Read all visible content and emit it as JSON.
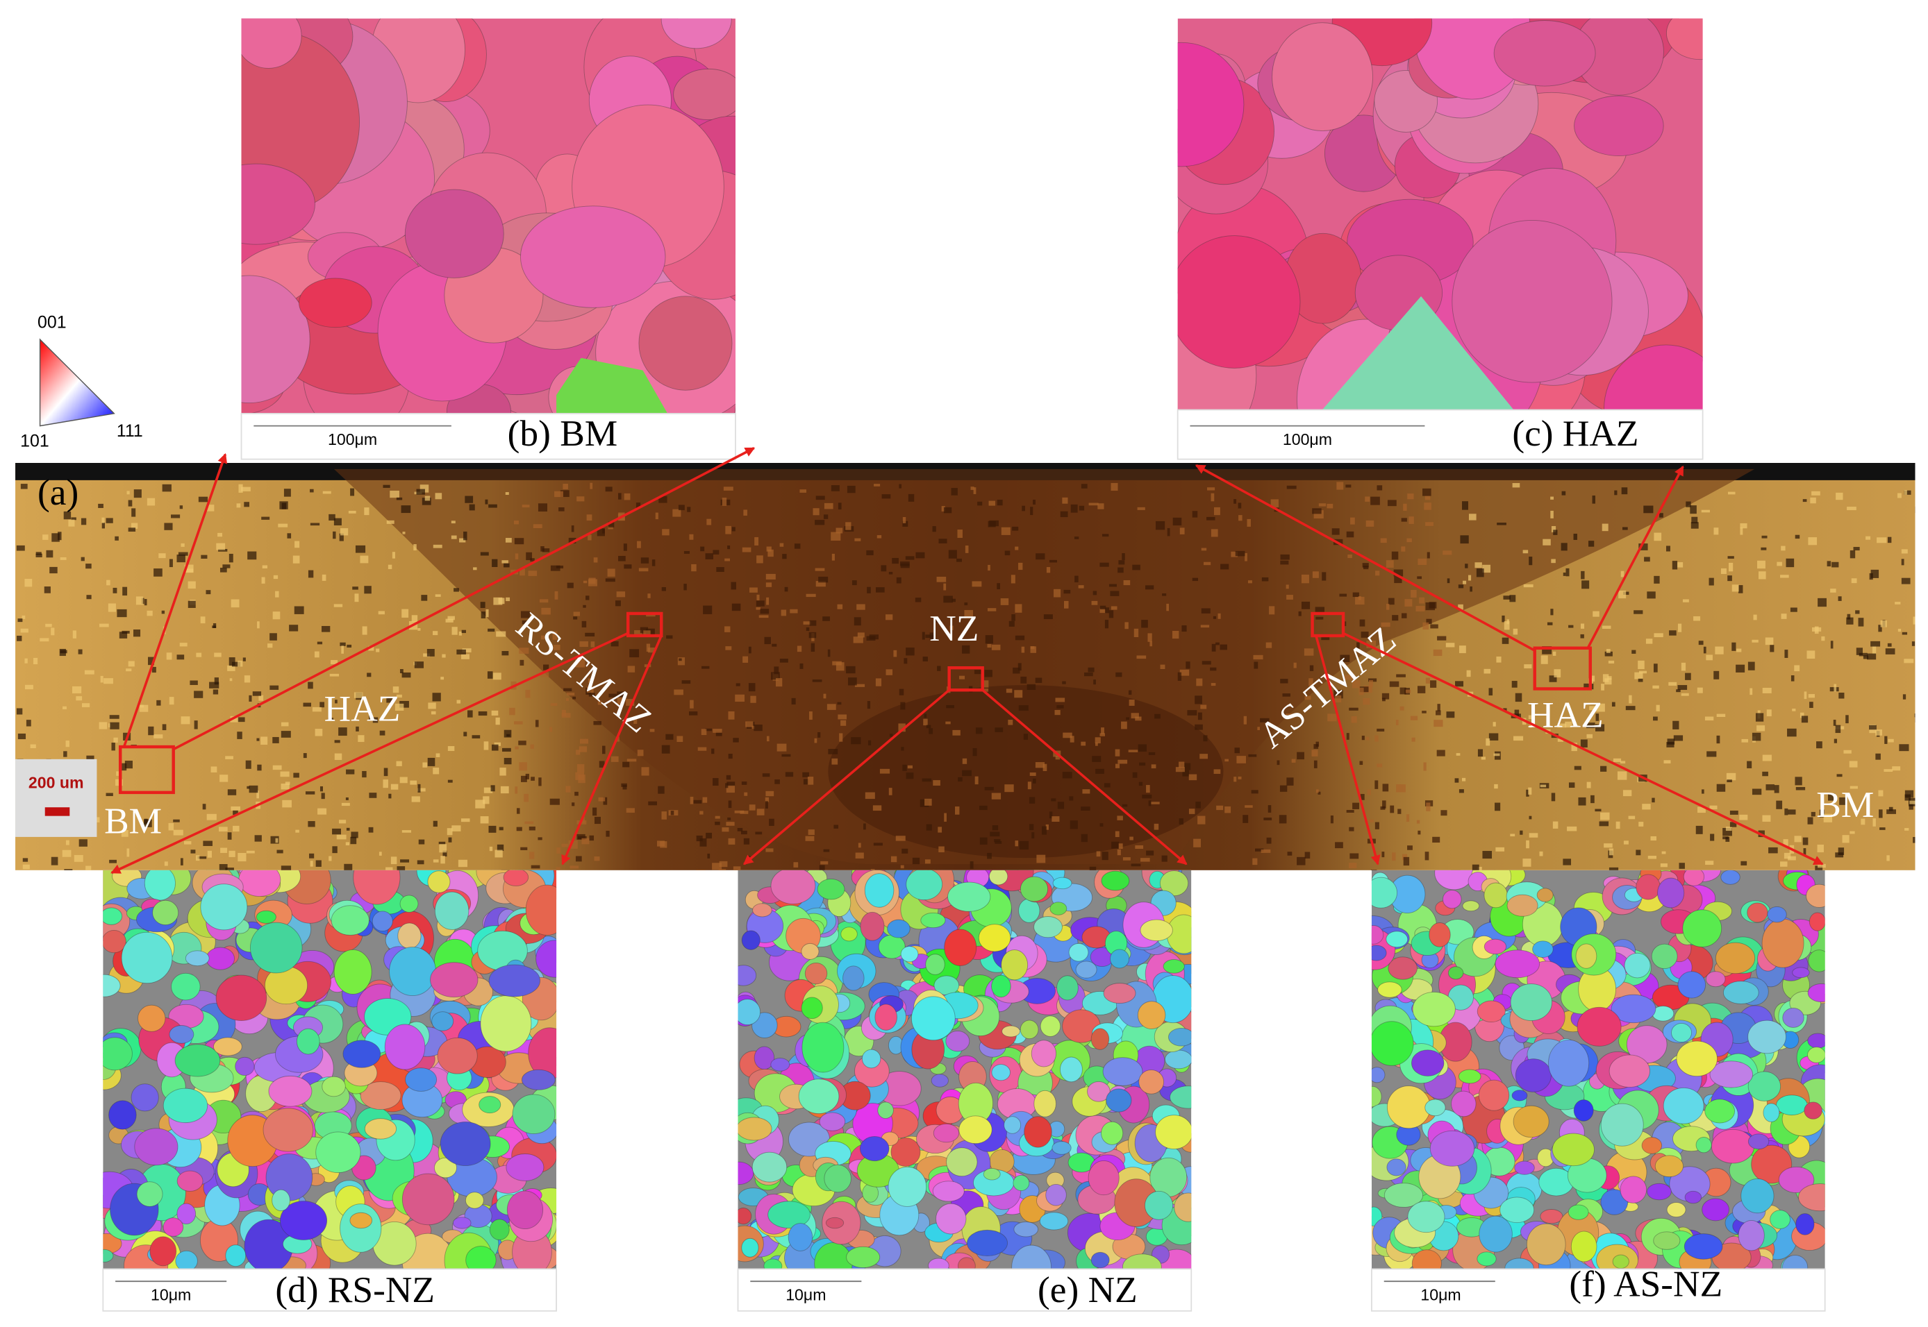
{
  "legend": {
    "top": "001",
    "left": "101",
    "right": "111"
  },
  "panels": {
    "a": {
      "label": "(a)",
      "scale": "200 um",
      "regions": [
        "BM",
        "HAZ",
        "RS-TMAZ",
        "NZ",
        "AS-TMAZ",
        "HAZ",
        "BM"
      ]
    },
    "b": {
      "caption": "(b) BM",
      "scale": "100μm"
    },
    "c": {
      "caption": "(c) HAZ",
      "scale": "100μm"
    },
    "d": {
      "caption": "(d) RS-NZ",
      "scale": "10μm"
    },
    "e": {
      "caption": "(e) NZ",
      "scale": "10μm"
    },
    "f": {
      "caption": "(f) AS-NZ",
      "scale": "10μm"
    }
  }
}
